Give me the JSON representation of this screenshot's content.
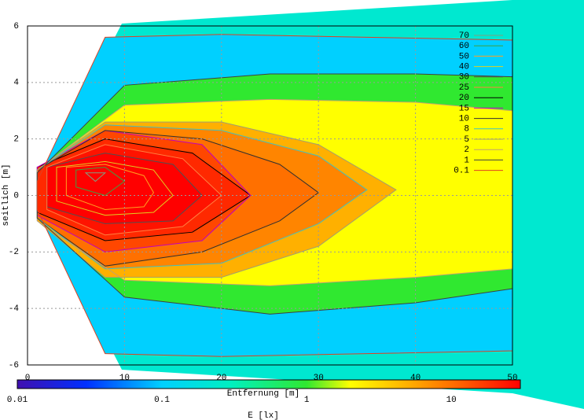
{
  "chart_data": {
    "type": "contour",
    "x_label": "Entfernung [m]",
    "y_label": "seitlich [m]",
    "xlim": [
      0,
      50
    ],
    "xticks": [
      0,
      10,
      20,
      30,
      40,
      50
    ],
    "ylim": [
      -6,
      6
    ],
    "yticks": [
      -6,
      -4,
      -2,
      0,
      2,
      4,
      6
    ],
    "grid": true,
    "legend": "top-right",
    "colorbar": {
      "label": "E [lx]",
      "log": true,
      "clim": [
        0.01,
        30
      ],
      "ticks": [
        0.01,
        0.1,
        1,
        10
      ],
      "colormap": [
        {
          "value": 0.01,
          "color": "#4010b0"
        },
        {
          "value": 0.03,
          "color": "#0030ff"
        },
        {
          "value": 0.1,
          "color": "#00d0ff"
        },
        {
          "value": 0.3,
          "color": "#00f0c0"
        },
        {
          "value": 1,
          "color": "#30e830"
        },
        {
          "value": 2,
          "color": "#ffff00"
        },
        {
          "value": 5,
          "color": "#ffb000"
        },
        {
          "value": 10,
          "color": "#ff7000"
        },
        {
          "value": 30,
          "color": "#ff0000"
        }
      ]
    },
    "series": [
      {
        "name": "70",
        "color": "#80a080",
        "x": [
          6,
          8,
          7
        ],
        "y": [
          0.8,
          0.8,
          0.5
        ]
      },
      {
        "name": "60",
        "color": "#40a040",
        "x": [
          5,
          8,
          10,
          8,
          5
        ],
        "y": [
          0.9,
          1,
          0.5,
          0,
          0.3
        ]
      },
      {
        "name": "50",
        "color": "#ffa020",
        "x": [
          4,
          8,
          12,
          13,
          12,
          8,
          4
        ],
        "y": [
          1,
          1.1,
          0.7,
          0.1,
          -0.4,
          -0.5,
          0
        ]
      },
      {
        "name": "40",
        "color": "#e0d020",
        "x": [
          3,
          8,
          13,
          15,
          13,
          8,
          3
        ],
        "y": [
          1,
          1.2,
          0.9,
          0,
          -0.6,
          -0.7,
          -0.2
        ]
      },
      {
        "name": "30",
        "color": "#505050",
        "x": [
          2,
          8,
          15,
          18,
          15,
          8,
          2
        ],
        "y": [
          1,
          1.5,
          1.1,
          0,
          -0.9,
          -1,
          -0.4
        ]
      },
      {
        "name": "25",
        "color": "#ff8040",
        "x": [
          2,
          8,
          16,
          20,
          16,
          8,
          2
        ],
        "y": [
          1,
          1.8,
          1.3,
          0,
          -1.1,
          -1.4,
          -0.5
        ]
      },
      {
        "name": "20",
        "color": "#000000",
        "x": [
          1,
          8,
          17,
          23,
          17,
          8,
          1
        ],
        "y": [
          1,
          2,
          1.5,
          0,
          -1.3,
          -1.6,
          -0.6
        ]
      },
      {
        "name": "15",
        "color": "#c000c0",
        "x": [
          1,
          8,
          18,
          23,
          18,
          8,
          1
        ],
        "y": [
          1,
          2.3,
          1.8,
          0,
          -1.6,
          -2,
          -0.7
        ]
      },
      {
        "name": "10",
        "color": "#303030",
        "x": [
          1,
          8,
          18,
          26,
          30,
          26,
          18,
          8,
          1
        ],
        "y": [
          0.9,
          2.3,
          2,
          1.1,
          0.1,
          -0.9,
          -2,
          -2.5,
          -0.8
        ]
      },
      {
        "name": "8",
        "color": "#40c0c0",
        "x": [
          1,
          8,
          20,
          30,
          35,
          30,
          20,
          8,
          1
        ],
        "y": [
          0.9,
          2.5,
          2.3,
          1.4,
          0.2,
          -1,
          -2.4,
          -2.6,
          -0.8
        ]
      },
      {
        "name": "5",
        "color": "#a0a070",
        "x": [
          1,
          8,
          20,
          30,
          38,
          30,
          20,
          8,
          1
        ],
        "y": [
          0.9,
          2.6,
          2.6,
          1.8,
          0.2,
          -1.8,
          -2.9,
          -2.9,
          -0.9
        ]
      },
      {
        "name": "2",
        "color": "#c0a070",
        "x": [
          1,
          10,
          25,
          40,
          50,
          50,
          40,
          25,
          10,
          1
        ],
        "y": [
          0.9,
          3.2,
          3.4,
          3.3,
          3,
          -2.6,
          -2.9,
          -3.2,
          -3,
          -0.9
        ]
      },
      {
        "name": "1",
        "color": "#404040",
        "x": [
          1,
          10,
          25,
          40,
          50,
          50,
          40,
          25,
          10,
          1
        ],
        "y": [
          0.8,
          3.9,
          4.3,
          4.3,
          4.2,
          -3.3,
          -3.8,
          -4.2,
          -3.6,
          -0.8
        ]
      },
      {
        "name": "0.1",
        "color": "#e04020",
        "x": [
          1,
          8,
          20,
          35,
          50,
          50,
          35,
          20,
          8,
          1
        ],
        "y": [
          0.5,
          5.6,
          5.7,
          5.6,
          5.5,
          -5.5,
          -5.6,
          -5.7,
          -5.6,
          -0.5
        ]
      }
    ]
  }
}
